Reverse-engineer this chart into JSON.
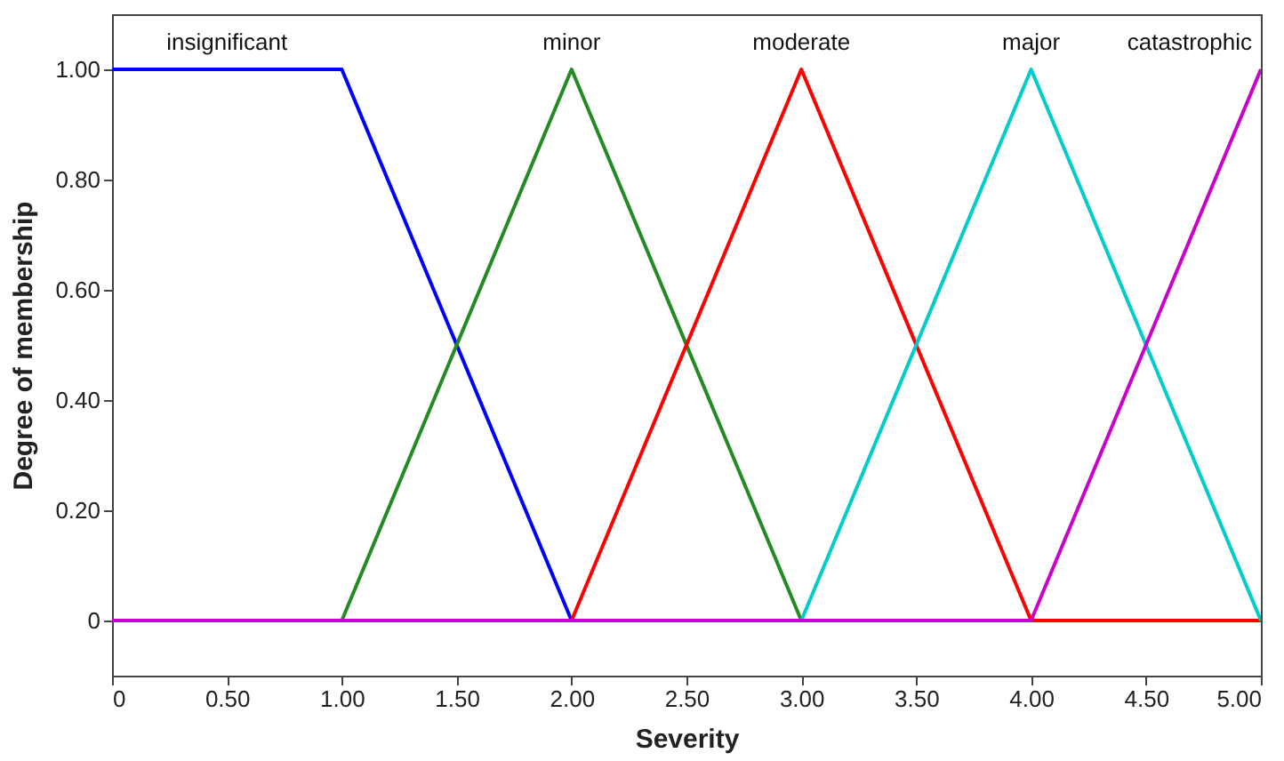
{
  "chart_data": {
    "type": "line",
    "xlabel": "Severity",
    "ylabel": "Degree of membership",
    "xlim": [
      0,
      5
    ],
    "ylim": [
      -0.1,
      1.1
    ],
    "xticks": [
      0,
      {
        "value": 0.5,
        "label": "0.50"
      },
      {
        "value": 1,
        "label": "1.00"
      },
      {
        "value": 1.5,
        "label": "1.50"
      },
      {
        "value": 2,
        "label": "2.00"
      },
      {
        "value": 2.5,
        "label": "2.50"
      },
      {
        "value": 3,
        "label": "3.00"
      },
      {
        "value": 3.5,
        "label": "3.50"
      },
      {
        "value": 4,
        "label": "4.00"
      },
      {
        "value": 4.5,
        "label": "4.50"
      },
      {
        "value": 5,
        "label": "5.00"
      }
    ],
    "yticks": [
      0,
      {
        "value": 0.2,
        "label": "0.20"
      },
      {
        "value": 0.4,
        "label": "0.40"
      },
      {
        "value": 0.6,
        "label": "0.60"
      },
      {
        "value": 0.8,
        "label": "0.80"
      },
      {
        "value": 1,
        "label": "1.00"
      }
    ],
    "grid": false,
    "legend": false,
    "marker": "none",
    "line_style": "solid",
    "series": [
      {
        "name": "insignificant",
        "color": "#0000ff",
        "x": [
          0,
          1,
          2,
          5
        ],
        "values": [
          1,
          1,
          0,
          0
        ]
      },
      {
        "name": "minor",
        "color": "#228b22",
        "x": [
          0,
          1,
          2,
          3,
          5
        ],
        "values": [
          0,
          0,
          1,
          0,
          0
        ]
      },
      {
        "name": "moderate",
        "color": "#ff0000",
        "x": [
          0,
          2,
          3,
          4,
          5
        ],
        "values": [
          0,
          0,
          1,
          0,
          0
        ]
      },
      {
        "name": "major",
        "color": "#00cccc",
        "x": [
          0,
          3,
          4,
          5
        ],
        "values": [
          0,
          0,
          1,
          0
        ]
      },
      {
        "name": "catastrophic",
        "color": "#cc00cc",
        "x": [
          0,
          4,
          5
        ],
        "values": [
          0,
          0,
          1
        ]
      }
    ]
  }
}
